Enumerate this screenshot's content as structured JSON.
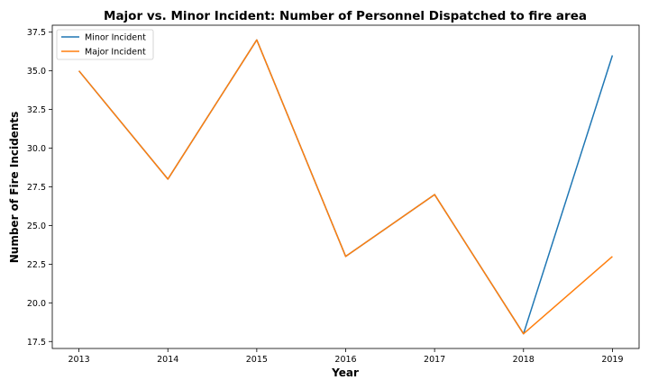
{
  "chart_data": {
    "type": "line",
    "title": "Major vs. Minor Incident: Number of Personnel Dispatched to fire area",
    "xlabel": "Year",
    "ylabel": "Number of Fire Incidents",
    "x": [
      2013,
      2014,
      2015,
      2016,
      2017,
      2018,
      2019
    ],
    "x_tick_labels": [
      "2013",
      "2014",
      "2015",
      "2016",
      "2017",
      "2018",
      "2019"
    ],
    "xlim": [
      2012.7,
      2019.3
    ],
    "ylim": [
      17.05,
      37.95
    ],
    "y_ticks": [
      17.5,
      20.0,
      22.5,
      25.0,
      27.5,
      30.0,
      32.5,
      35.0,
      37.5
    ],
    "y_tick_labels": [
      "17.5",
      "20.0",
      "22.5",
      "25.0",
      "27.5",
      "30.0",
      "32.5",
      "35.0",
      "37.5"
    ],
    "grid": false,
    "legend_position": "top-left",
    "series": [
      {
        "name": "Minor Incident",
        "color": "#1f77b4",
        "values": [
          35,
          28,
          37,
          23,
          27,
          18,
          36
        ]
      },
      {
        "name": "Major Incident",
        "color": "#ff7f0e",
        "values": [
          35,
          28,
          37,
          23,
          27,
          18,
          23
        ]
      }
    ]
  }
}
